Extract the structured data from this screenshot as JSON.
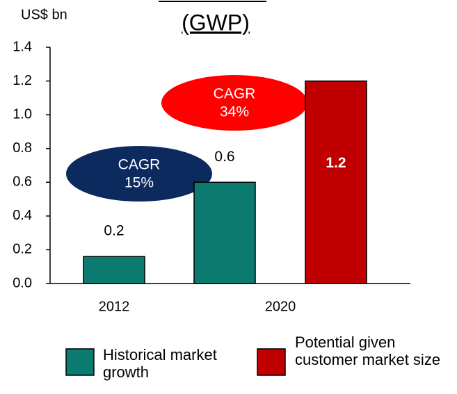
{
  "chart_data": {
    "type": "bar",
    "title": "(GWP)",
    "y_unit": "US$ bn",
    "categories": [
      "2012",
      "2020"
    ],
    "series": [
      {
        "name": "Historical market growth",
        "color": "#0b7b70",
        "values": [
          0.16,
          0.6
        ],
        "value_labels": [
          "0.2",
          "0.6"
        ]
      },
      {
        "name": "Potential given customer market size",
        "color": "#c00000",
        "values": [
          null,
          1.2
        ]
      }
    ],
    "annotations": [
      {
        "lines": [
          "CAGR",
          "15%"
        ],
        "color": "#0c2a5e"
      },
      {
        "lines": [
          "CAGR",
          "34%"
        ],
        "color": "#ff0000"
      }
    ],
    "ylim": [
      0,
      1.4
    ],
    "yticks": [
      {
        "value": 0,
        "label": "0.0"
      },
      0.2,
      0.4,
      0.6,
      0.8,
      {
        "value": 1,
        "label": "1.0"
      },
      1.2,
      1.4
    ],
    "grid": false
  }
}
